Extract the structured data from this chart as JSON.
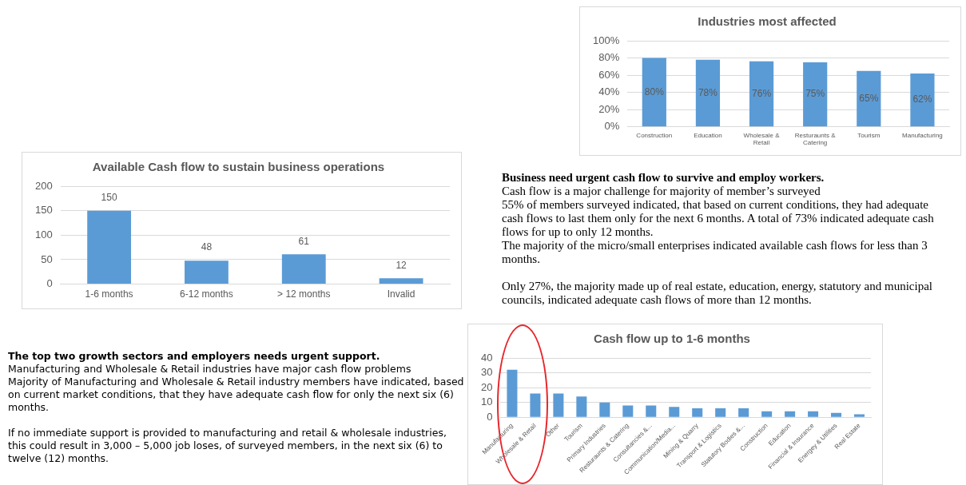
{
  "chart_data": [
    {
      "type": "bar",
      "title": "Industries most affected",
      "categories": [
        [
          "Construction"
        ],
        [
          "Education"
        ],
        [
          "Wholesale &",
          "Retail"
        ],
        [
          "Resturaunts &",
          "Catering"
        ],
        [
          "Tourism"
        ],
        [
          "Manufacturing"
        ]
      ],
      "values": [
        80,
        78,
        76,
        75,
        65,
        62
      ],
      "value_labels": [
        "80%",
        "78%",
        "76%",
        "75%",
        "65%",
        "62%"
      ],
      "color": "#5b9bd5",
      "ylim": [
        0,
        100
      ],
      "yticks": [
        {
          "value": 0,
          "label": "0%"
        },
        {
          "value": 20,
          "label": "20%"
        },
        {
          "value": 40,
          "label": "40%"
        },
        {
          "value": 60,
          "label": "60%"
        },
        {
          "value": 80,
          "label": "80%"
        },
        {
          "value": 100,
          "label": "100%"
        }
      ],
      "grid": "y"
    },
    {
      "type": "bar",
      "title": "Available Cash flow to sustain business operations",
      "categories": [
        "1-6 months",
        "6-12 months",
        "> 12 months",
        "Invalid"
      ],
      "values": [
        150,
        48,
        61,
        12
      ],
      "data_labels": true,
      "color": "#5b9bd5",
      "ylim": [
        0,
        200
      ],
      "yticks": [
        0,
        50,
        100,
        150,
        200
      ],
      "grid": "y"
    },
    {
      "type": "other",
      "title": "Business need urgent cash flow to survive and employ workers.",
      "annotations": [
        "Cash flow is a major challenge for majority of member’s surveyed",
        "55% of members surveyed indicated, that based on current conditions, they had adequate cash flows to last them only for the next 6 months. A total of 73% indicated adequate cash flows for up to only 12 months.",
        "The majority of the micro/small enterprises indicated available cash flows for less than 3 months.",
        "Only 27%, the majority made up of real estate, education, energy, statutory and municipal councils, indicated adequate cash flows of more than 12 months."
      ]
    },
    {
      "type": "other",
      "title": "The top two growth sectors and employers needs urgent support.",
      "annotations": [
        "Manufacturing and Wholesale & Retail industries have major cash flow problems",
        "Majority of Manufacturing and Wholesale & Retail industry members have indicated, based on current market conditions, that they have adequate cash flow for only the next six (6) months.",
        "If no immediate support is provided to manufacturing and retail & wholesale industries, this could result in 3,000 – 5,000 job loses, of surveyed members, in the next six (6) to twelve (12) months."
      ]
    },
    {
      "type": "bar",
      "title": "Cash flow up to 1-6 months",
      "categories": [
        "Manufacturing",
        "Wholesale & Retail",
        "Other",
        "Tourism",
        "Primary Industries",
        "Resturaunts & Catering",
        "Consultancies &...",
        "Communication/Media...",
        "Mining & Quarry",
        "Transport & Logistics",
        "Statutory Bodies &...",
        "Construction",
        "Education",
        "Financial & Insurance",
        "Energey & Utilities",
        "Real Estate"
      ],
      "values": [
        32,
        16,
        16,
        14,
        10,
        8,
        8,
        7,
        6,
        6,
        6,
        4,
        4,
        4,
        3,
        2
      ],
      "color": "#5b9bd5",
      "ylim": [
        0,
        40
      ],
      "yticks": [
        0,
        10,
        20,
        30,
        40
      ],
      "grid": "y"
    }
  ]
}
